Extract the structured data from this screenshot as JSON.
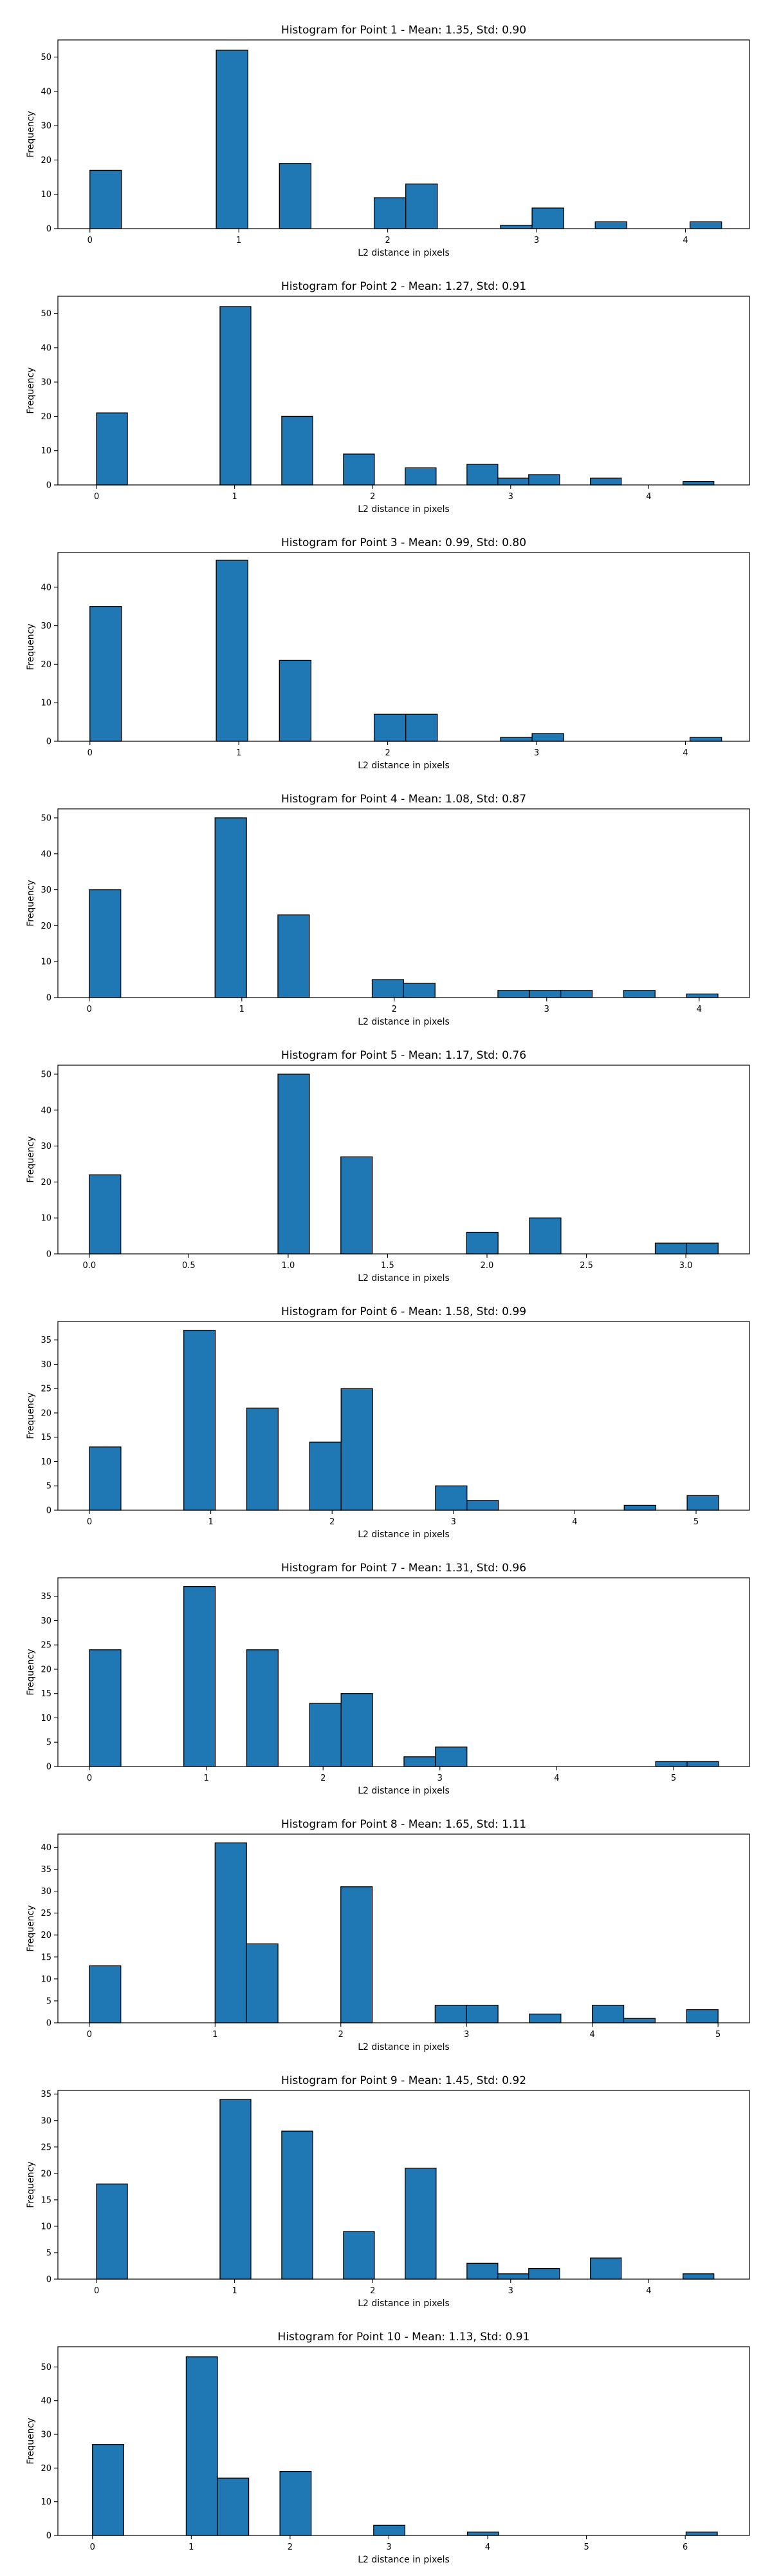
{
  "chart_data": [
    {
      "type": "bar",
      "title": "Histogram for Point 1 - Mean: 1.35, Std: 0.90",
      "xlabel": "L2 distance in pixels",
      "ylabel": "Frequency",
      "xlim": [
        -0.215,
        4.43
      ],
      "ylim": [
        0,
        55
      ],
      "xticks": [
        0,
        1,
        2,
        3,
        4
      ],
      "yticks": [
        0,
        10,
        20,
        30,
        40,
        50
      ],
      "xtick_labels": [
        "0",
        "1",
        "2",
        "3",
        "4"
      ],
      "ytick_labels": [
        "0",
        "10",
        "20",
        "30",
        "40",
        "50"
      ],
      "bin_edges": [
        0,
        0.2121,
        0.4243,
        0.6364,
        0.8485,
        1.0607,
        1.2728,
        1.4849,
        1.6971,
        1.9092,
        2.1213,
        2.3335,
        2.5456,
        2.7577,
        2.9698,
        3.182,
        3.3941,
        3.6062,
        3.8184,
        4.0305,
        4.2426
      ],
      "values": [
        17,
        0,
        0,
        0,
        52,
        0,
        19,
        0,
        0,
        9,
        13,
        0,
        0,
        1,
        6,
        0,
        2,
        0,
        0,
        2
      ]
    },
    {
      "type": "bar",
      "title": "Histogram for Point 2 - Mean: 1.27, Std: 0.91",
      "xlabel": "L2 distance in pixels",
      "ylabel": "Frequency",
      "xlim": [
        -0.28,
        4.73
      ],
      "ylim": [
        0,
        55
      ],
      "xticks": [
        0,
        1,
        2,
        3,
        4
      ],
      "yticks": [
        0,
        10,
        20,
        30,
        40,
        50
      ],
      "xtick_labels": [
        "0",
        "1",
        "2",
        "3",
        "4"
      ],
      "ytick_labels": [
        "0",
        "10",
        "20",
        "30",
        "40",
        "50"
      ],
      "bin_edges": [
        0,
        0.2236,
        0.4472,
        0.6708,
        0.8944,
        1.118,
        1.3416,
        1.5652,
        1.7889,
        2.0125,
        2.2361,
        2.4597,
        2.6833,
        2.9069,
        3.1305,
        3.3541,
        3.5777,
        3.8013,
        4.0249,
        4.2485,
        4.4721
      ],
      "values": [
        21,
        0,
        0,
        0,
        52,
        0,
        20,
        0,
        9,
        0,
        5,
        0,
        6,
        2,
        3,
        0,
        2,
        0,
        0,
        1
      ]
    },
    {
      "type": "bar",
      "title": "Histogram for Point 3 - Mean: 0.99, Std: 0.80",
      "xlabel": "L2 distance in pixels",
      "ylabel": "Frequency",
      "xlim": [
        -0.215,
        4.43
      ],
      "ylim": [
        0,
        49
      ],
      "xticks": [
        0,
        1,
        2,
        3,
        4
      ],
      "yticks": [
        0,
        10,
        20,
        30,
        40
      ],
      "xtick_labels": [
        "0",
        "1",
        "2",
        "3",
        "4"
      ],
      "ytick_labels": [
        "0",
        "10",
        "20",
        "30",
        "40"
      ],
      "bin_edges": [
        0,
        0.2121,
        0.4243,
        0.6364,
        0.8485,
        1.0607,
        1.2728,
        1.4849,
        1.6971,
        1.9092,
        2.1213,
        2.3335,
        2.5456,
        2.7577,
        2.9698,
        3.182,
        3.3941,
        3.6062,
        3.8184,
        4.0305,
        4.2426
      ],
      "values": [
        35,
        0,
        0,
        0,
        47,
        0,
        21,
        0,
        0,
        7,
        7,
        0,
        0,
        1,
        2,
        0,
        0,
        0,
        0,
        1
      ]
    },
    {
      "type": "bar",
      "title": "Histogram for Point 4 - Mean: 1.08, Std: 0.87",
      "xlabel": "L2 distance in pixels",
      "ylabel": "Frequency",
      "xlim": [
        -0.206,
        4.33
      ],
      "ylim": [
        0,
        52.5
      ],
      "xticks": [
        0,
        1,
        2,
        3,
        4
      ],
      "yticks": [
        0,
        10,
        20,
        30,
        40,
        50
      ],
      "xtick_labels": [
        "0",
        "1",
        "2",
        "3",
        "4"
      ],
      "ytick_labels": [
        "0",
        "10",
        "20",
        "30",
        "40",
        "50"
      ],
      "bin_edges": [
        0,
        0.2062,
        0.4123,
        0.6185,
        0.8246,
        1.0308,
        1.2369,
        1.4431,
        1.6492,
        1.8554,
        2.0616,
        2.2677,
        2.4739,
        2.68,
        2.8862,
        3.0923,
        3.2985,
        3.5046,
        3.7108,
        3.9169,
        4.1231
      ],
      "values": [
        30,
        0,
        0,
        0,
        50,
        0,
        23,
        0,
        0,
        5,
        4,
        0,
        0,
        2,
        2,
        2,
        0,
        2,
        0,
        1
      ]
    },
    {
      "type": "bar",
      "title": "Histogram for Point 5 - Mean: 1.17, Std: 0.76",
      "xlabel": "L2 distance in pixels",
      "ylabel": "Frequency",
      "xlim": [
        -0.158,
        3.32
      ],
      "ylim": [
        0,
        52.5
      ],
      "xticks": [
        0,
        0.5,
        1,
        1.5,
        2,
        2.5,
        3
      ],
      "yticks": [
        0,
        10,
        20,
        30,
        40,
        50
      ],
      "xtick_labels": [
        "0.0",
        "0.5",
        "1.0",
        "1.5",
        "2.0",
        "2.5",
        "3.0"
      ],
      "ytick_labels": [
        "0",
        "10",
        "20",
        "30",
        "40",
        "50"
      ],
      "bin_edges": [
        0,
        0.1581,
        0.3162,
        0.4743,
        0.6325,
        0.7906,
        0.9487,
        1.1068,
        1.2649,
        1.423,
        1.5811,
        1.7393,
        1.8974,
        2.0555,
        2.2136,
        2.3717,
        2.5298,
        2.6879,
        2.8461,
        3.0042,
        3.1623
      ],
      "values": [
        22,
        0,
        0,
        0,
        0,
        0,
        50,
        0,
        27,
        0,
        0,
        0,
        6,
        0,
        10,
        0,
        0,
        0,
        3,
        3
      ]
    },
    {
      "type": "bar",
      "title": "Histogram for Point 6 - Mean: 1.58, Std: 0.99",
      "xlabel": "L2 distance in pixels",
      "ylabel": "Frequency",
      "xlim": [
        -0.26,
        5.44
      ],
      "ylim": [
        0,
        38.8
      ],
      "xticks": [
        0,
        1,
        2,
        3,
        4,
        5
      ],
      "yticks": [
        0,
        5,
        10,
        15,
        20,
        25,
        30,
        35
      ],
      "xtick_labels": [
        "0",
        "1",
        "2",
        "3",
        "4",
        "5"
      ],
      "ytick_labels": [
        "0",
        "5",
        "10",
        "15",
        "20",
        "25",
        "30",
        "35"
      ],
      "bin_edges": [
        0,
        0.2593,
        0.5185,
        0.7778,
        1.0371,
        1.2963,
        1.5556,
        1.8149,
        2.0742,
        2.3334,
        2.5927,
        2.852,
        3.1112,
        3.3705,
        3.6298,
        3.889,
        4.1483,
        4.4076,
        4.6669,
        4.9261,
        5.1854
      ],
      "values": [
        13,
        0,
        0,
        37,
        0,
        21,
        0,
        14,
        25,
        0,
        0,
        5,
        2,
        0,
        0,
        0,
        0,
        1,
        0,
        3
      ]
    },
    {
      "type": "bar",
      "title": "Histogram for Point 7 - Mean: 1.31, Std: 0.96",
      "xlabel": "L2 distance in pixels",
      "ylabel": "Frequency",
      "xlim": [
        -0.27,
        5.65
      ],
      "ylim": [
        0,
        38.8
      ],
      "xticks": [
        0,
        1,
        2,
        3,
        4,
        5
      ],
      "yticks": [
        0,
        5,
        10,
        15,
        20,
        25,
        30,
        35
      ],
      "xtick_labels": [
        "0",
        "1",
        "2",
        "3",
        "4",
        "5"
      ],
      "ytick_labels": [
        "0",
        "5",
        "10",
        "15",
        "20",
        "25",
        "30",
        "35"
      ],
      "bin_edges": [
        0,
        0.2693,
        0.5385,
        0.8078,
        1.077,
        1.3463,
        1.6155,
        1.8848,
        2.1541,
        2.4233,
        2.6926,
        2.9618,
        3.2311,
        3.5003,
        3.7696,
        4.0389,
        4.3081,
        4.5774,
        4.8466,
        5.1159,
        5.3852
      ],
      "values": [
        24,
        0,
        0,
        37,
        0,
        24,
        0,
        13,
        15,
        0,
        2,
        4,
        0,
        0,
        0,
        0,
        0,
        0,
        1,
        1
      ]
    },
    {
      "type": "bar",
      "title": "Histogram for Point 8 - Mean: 1.65, Std: 1.11",
      "xlabel": "L2 distance in pixels",
      "ylabel": "Frequency",
      "xlim": [
        -0.25,
        5.25
      ],
      "ylim": [
        0,
        43
      ],
      "xticks": [
        0,
        1,
        2,
        3,
        4,
        5
      ],
      "yticks": [
        0,
        5,
        10,
        15,
        20,
        25,
        30,
        35,
        40
      ],
      "xtick_labels": [
        "0",
        "1",
        "2",
        "3",
        "4",
        "5"
      ],
      "ytick_labels": [
        "0",
        "5",
        "10",
        "15",
        "20",
        "25",
        "30",
        "35",
        "40"
      ],
      "bin_edges": [
        0,
        0.25,
        0.5,
        0.75,
        1,
        1.25,
        1.5,
        1.75,
        2,
        2.25,
        2.5,
        2.75,
        3,
        3.25,
        3.5,
        3.75,
        4,
        4.25,
        4.5,
        4.75,
        5
      ],
      "values": [
        13,
        0,
        0,
        0,
        41,
        18,
        0,
        0,
        31,
        0,
        0,
        4,
        4,
        0,
        2,
        0,
        4,
        1,
        0,
        3
      ]
    },
    {
      "type": "bar",
      "title": "Histogram for Point 9 - Mean: 1.45, Std: 0.92",
      "xlabel": "L2 distance in pixels",
      "ylabel": "Frequency",
      "xlim": [
        -0.28,
        4.73
      ],
      "ylim": [
        0,
        35.7
      ],
      "xticks": [
        0,
        1,
        2,
        3,
        4
      ],
      "yticks": [
        0,
        5,
        10,
        15,
        20,
        25,
        30,
        35
      ],
      "xtick_labels": [
        "0",
        "1",
        "2",
        "3",
        "4"
      ],
      "ytick_labels": [
        "0",
        "5",
        "10",
        "15",
        "20",
        "25",
        "30",
        "35"
      ],
      "bin_edges": [
        0,
        0.2236,
        0.4472,
        0.6708,
        0.8944,
        1.118,
        1.3416,
        1.5652,
        1.7889,
        2.0125,
        2.2361,
        2.4597,
        2.6833,
        2.9069,
        3.1305,
        3.3541,
        3.5777,
        3.8013,
        4.0249,
        4.2485,
        4.4721
      ],
      "values": [
        18,
        0,
        0,
        0,
        34,
        0,
        28,
        0,
        9,
        0,
        21,
        0,
        3,
        1,
        2,
        0,
        4,
        0,
        0,
        1
      ]
    },
    {
      "type": "bar",
      "title": "Histogram for Point 10 - Mean: 1.13, Std: 0.91",
      "xlabel": "L2 distance in pixels",
      "ylabel": "Frequency",
      "xlim": [
        -0.35,
        6.65
      ],
      "ylim": [
        0,
        56
      ],
      "xticks": [
        0,
        1,
        2,
        3,
        4,
        5,
        6
      ],
      "yticks": [
        0,
        10,
        20,
        30,
        40,
        50
      ],
      "xtick_labels": [
        "0",
        "1",
        "2",
        "3",
        "4",
        "5",
        "6"
      ],
      "ytick_labels": [
        "0",
        "10",
        "20",
        "30",
        "40",
        "50"
      ],
      "bin_edges": [
        0,
        0.3162,
        0.6325,
        0.9487,
        1.2649,
        1.5811,
        1.8974,
        2.2136,
        2.5298,
        2.8461,
        3.1623,
        3.4785,
        3.7947,
        4.111,
        4.4272,
        4.7434,
        5.0596,
        5.3759,
        5.6921,
        6.0083,
        6.3246
      ],
      "values": [
        27,
        0,
        0,
        53,
        17,
        0,
        19,
        0,
        0,
        3,
        0,
        0,
        1,
        0,
        0,
        0,
        0,
        0,
        0,
        1
      ]
    }
  ]
}
